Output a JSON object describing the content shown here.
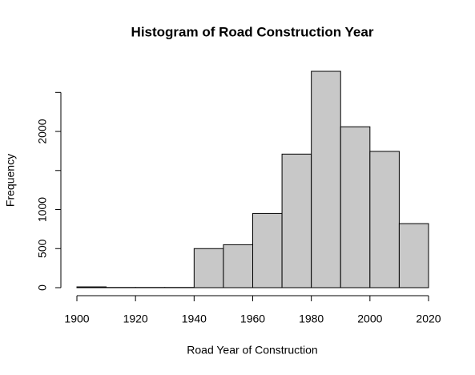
{
  "chart_data": {
    "type": "histogram",
    "title": "Histogram of Road Construction Year",
    "x_label": "Road Year of Construction",
    "y_label": "Frequency",
    "bins": [
      1900,
      1910,
      1920,
      1930,
      1940,
      1950,
      1960,
      1970,
      1980,
      1990,
      2000,
      2010,
      2020
    ],
    "values": [
      10,
      3,
      3,
      3,
      500,
      550,
      950,
      1710,
      2770,
      2060,
      1745,
      820
    ],
    "color": "#c8c8c8",
    "xlim": [
      1900,
      2020
    ],
    "xticks": [
      1900,
      1920,
      1940,
      1960,
      1980,
      2000,
      2020
    ],
    "ylim": [
      0,
      2770
    ],
    "yticks": [
      0,
      500,
      1000,
      2000
    ],
    "yminor_ticks": [
      1500,
      2500
    ]
  }
}
